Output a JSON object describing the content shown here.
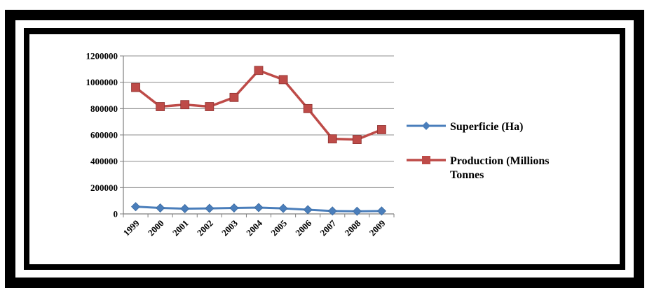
{
  "chart_data": {
    "type": "line",
    "categories": [
      "1999",
      "2000",
      "2001",
      "2002",
      "2003",
      "2004",
      "2005",
      "2006",
      "2007",
      "2008",
      "2009"
    ],
    "ylim": [
      0,
      1200000
    ],
    "yticks": [
      "0",
      "200000",
      "400000",
      "600000",
      "800000",
      "1000000",
      "1200000"
    ],
    "grid": true,
    "legend_position": "right",
    "series": [
      {
        "name": "Superficie (Ha)",
        "legend_lines": [
          "Superficie (Ha)"
        ],
        "color": "#4a7ebb",
        "marker": "diamond",
        "values": [
          55000,
          45000,
          40000,
          42000,
          45000,
          48000,
          42000,
          32000,
          22000,
          20000,
          22000
        ]
      },
      {
        "name": "Production (Millions Tonnes",
        "legend_lines": [
          "Production (Millions",
          "Tonnes"
        ],
        "color": "#be4b48",
        "marker": "square",
        "values": [
          960000,
          815000,
          830000,
          815000,
          885000,
          1090000,
          1020000,
          800000,
          570000,
          565000,
          640000
        ]
      }
    ]
  }
}
